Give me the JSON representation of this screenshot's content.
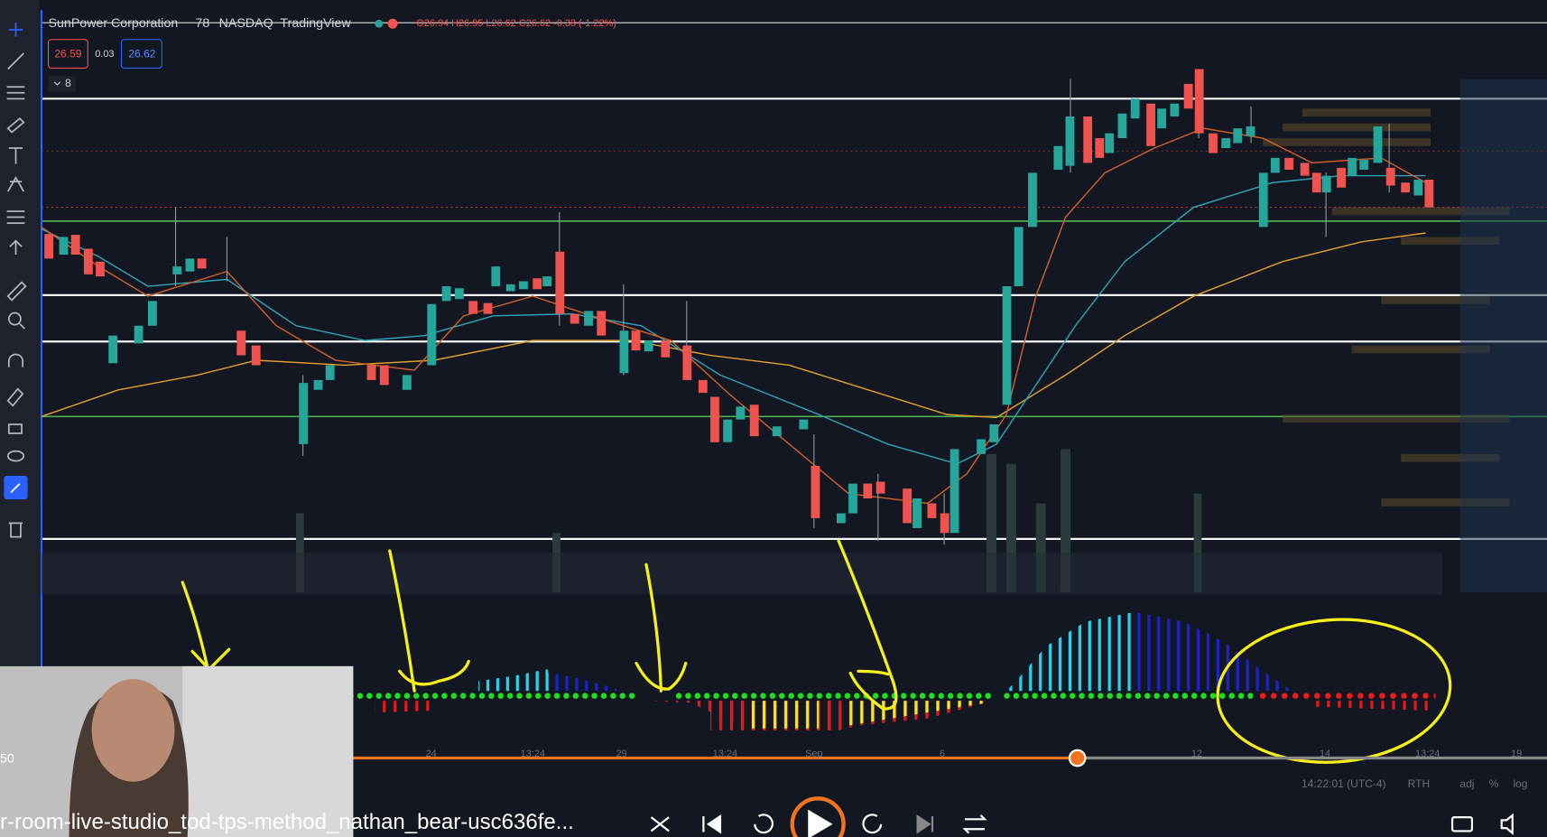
{
  "chart_header": {
    "symbol": "SunPower Corporation",
    "interval": "78",
    "exchange": "NASDAQ",
    "source": "TradingView",
    "ohlc": "O26.94 H26.95 L26.62 C26.62 -0.33 (-1.22%)"
  },
  "price_boxes": {
    "bid": "26.59",
    "spread": "0.03",
    "ask": "26.62"
  },
  "indicator_count": "8",
  "time_axis": [
    "24",
    "13:24",
    "29",
    "13:24",
    "Sep",
    "6",
    "12",
    "14",
    "13:24",
    "19"
  ],
  "status_bar": {
    "clock": "14:22:01 (UTC-4)",
    "session": "RTH",
    "adj": "adj",
    "percent": "%",
    "log": "log"
  },
  "player": {
    "elapsed": "50",
    "title": "r-room-live-studio_tod-tps-method_nathan_bear-usc636fe..."
  }
}
